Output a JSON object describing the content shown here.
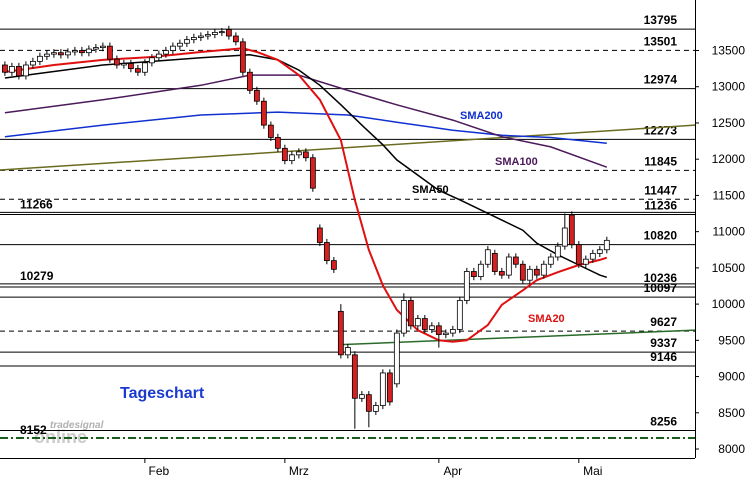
{
  "chart_data": {
    "type": "candlestick",
    "title": "Tageschart",
    "watermark": [
      "tradesignal",
      "online"
    ],
    "xlim": [
      -0.7,
      98.6
    ],
    "xticks": [
      {
        "value": 22,
        "label": "Feb"
      },
      {
        "value": 42,
        "label": "Mrz"
      },
      {
        "value": 64,
        "label": "Apr"
      },
      {
        "value": 84,
        "label": "Mai"
      }
    ],
    "ylim": [
      7876,
      14197
    ],
    "yticks": [
      8000,
      8500,
      9000,
      9500,
      10000,
      10500,
      11000,
      11500,
      12000,
      12500,
      13000,
      13500
    ],
    "up_color": "#ffffff",
    "down_color": "#d42020",
    "open": [
      13300,
      13200,
      13280,
      13150,
      13300,
      13350,
      13420,
      13450,
      13470,
      13440,
      13480,
      13500,
      13470,
      13520,
      13540,
      13560,
      13380,
      13300,
      13320,
      13250,
      13200,
      13330,
      13400,
      13450,
      13500,
      13560,
      13600,
      13650,
      13680,
      13700,
      13720,
      13750,
      13790,
      13700,
      13620,
      13200,
      12950,
      12800,
      12470,
      12300,
      12150,
      11980,
      12060,
      12100,
      12020,
      11050,
      10850,
      10600,
      9900,
      9300,
      9300,
      8700,
      8750,
      8520,
      8600,
      9050,
      8900,
      9600,
      10050,
      9700,
      9800,
      9650,
      9700,
      9580,
      9600,
      9650,
      10050,
      10450,
      10380,
      10550,
      10700,
      10450,
      10400,
      10650,
      10550,
      10330,
      10480,
      10400,
      10550,
      10650,
      10800,
      11230,
      10820,
      10550,
      10620,
      10700,
      10750
    ],
    "high": [
      13350,
      13330,
      13330,
      13350,
      13400,
      13470,
      13500,
      13520,
      13520,
      13530,
      13550,
      13550,
      13570,
      13590,
      13610,
      13610,
      13430,
      13370,
      13370,
      13300,
      13380,
      13450,
      13500,
      13550,
      13610,
      13650,
      13700,
      13730,
      13750,
      13770,
      13800,
      13810,
      13840,
      13750,
      13670,
      13250,
      13000,
      12850,
      12520,
      12350,
      12200,
      12110,
      12150,
      12150,
      12070,
      11100,
      10900,
      10650,
      10000,
      9450,
      9350,
      8800,
      8800,
      8650,
      9100,
      9100,
      9650,
      10150,
      10100,
      9850,
      9850,
      9750,
      9750,
      9650,
      9700,
      10100,
      10500,
      10500,
      10600,
      10800,
      10750,
      10500,
      10700,
      10700,
      10600,
      10530,
      10530,
      10600,
      10700,
      10850,
      11250,
      11280,
      10870,
      10670,
      10750,
      10800,
      10930
    ],
    "low": [
      13150,
      13150,
      13100,
      13100,
      13250,
      13300,
      13370,
      13400,
      13390,
      13390,
      13430,
      13420,
      13420,
      13470,
      13490,
      13330,
      13250,
      13250,
      13200,
      13150,
      13150,
      13280,
      13350,
      13400,
      13450,
      13510,
      13550,
      13600,
      13630,
      13650,
      13670,
      13700,
      13650,
      13570,
      13150,
      12900,
      12750,
      12420,
      12250,
      12100,
      11930,
      11930,
      12010,
      11970,
      11550,
      10800,
      10550,
      10430,
      9250,
      9250,
      8280,
      8650,
      8300,
      8470,
      8550,
      8600,
      8850,
      9550,
      9650,
      9650,
      9600,
      9600,
      9400,
      9530,
      9550,
      9600,
      10000,
      10330,
      10330,
      10500,
      10400,
      10350,
      10350,
      10500,
      10280,
      10280,
      10350,
      10350,
      10500,
      10600,
      10750,
      10770,
      10500,
      10500,
      10570,
      10650,
      10700
    ],
    "close": [
      13200,
      13280,
      13150,
      13300,
      13350,
      13420,
      13450,
      13470,
      13440,
      13480,
      13500,
      13470,
      13520,
      13540,
      13560,
      13380,
      13300,
      13320,
      13250,
      13200,
      13330,
      13400,
      13450,
      13500,
      13560,
      13600,
      13650,
      13680,
      13700,
      13720,
      13750,
      13760,
      13700,
      13620,
      13200,
      12950,
      12800,
      12470,
      12300,
      12150,
      11980,
      12060,
      12100,
      12020,
      11600,
      10850,
      10600,
      10480,
      9300,
      9400,
      8700,
      8750,
      8520,
      8600,
      9050,
      8650,
      9600,
      10050,
      9700,
      9800,
      9650,
      9700,
      9580,
      9600,
      9650,
      10050,
      10450,
      10380,
      10550,
      10750,
      10450,
      10400,
      10650,
      10550,
      10330,
      10480,
      10400,
      10550,
      10650,
      10800,
      11050,
      10820,
      10550,
      10620,
      10700,
      10750,
      10880
    ],
    "series": [
      {
        "name": "SMA200",
        "color": "#1030d0",
        "x": [
          0,
          14,
          28,
          39,
          49,
          56,
          64,
          71,
          78,
          86
        ],
        "values": [
          12310,
          12470,
          12610,
          12650,
          12610,
          12510,
          12400,
          12330,
          12300,
          12220
        ]
      },
      {
        "name": "SMA100",
        "color": "#4b1a5a",
        "x": [
          0,
          14,
          28,
          35,
          42,
          49,
          56,
          64,
          71,
          78,
          86
        ],
        "values": [
          12640,
          12820,
          13020,
          13160,
          13160,
          12950,
          12750,
          12540,
          12310,
          12170,
          11890
        ]
      },
      {
        "name": "SMA50",
        "color": "#000000",
        "x": [
          0,
          14,
          28,
          35,
          39,
          42,
          45,
          48,
          51,
          54,
          56,
          59,
          62,
          65,
          68,
          71,
          74,
          76,
          79,
          82,
          85,
          86
        ],
        "values": [
          13120,
          13300,
          13400,
          13440,
          13370,
          13230,
          13020,
          12750,
          12470,
          12200,
          11990,
          11780,
          11570,
          11440,
          11300,
          11160,
          11020,
          10840,
          10680,
          10540,
          10400,
          10370
        ]
      },
      {
        "name": "SMA20",
        "color": "#e01010",
        "x": [
          0,
          7,
          14,
          21,
          28,
          34,
          36,
          39,
          42,
          45,
          48,
          50,
          52,
          54,
          56,
          59,
          62,
          64,
          66,
          69,
          71,
          74,
          76,
          79,
          82,
          85,
          86
        ],
        "values": [
          13203,
          13300,
          13370,
          13410,
          13480,
          13530,
          13480,
          13370,
          13160,
          12820,
          12260,
          11440,
          10750,
          10260,
          9920,
          9640,
          9500,
          9480,
          9500,
          9710,
          9990,
          10190,
          10330,
          10440,
          10540,
          10610,
          10640
        ]
      }
    ],
    "trend_lines": [
      {
        "color": "#6b6b20",
        "x": [
          -0.7,
          98.6
        ],
        "values": [
          11850,
          12470
        ]
      },
      {
        "color": "#2a6a2a",
        "x": [
          48,
          98.6
        ],
        "values": [
          9440,
          9640
        ]
      }
    ],
    "levels": [
      {
        "value": 13795,
        "style": "solid",
        "side": "right"
      },
      {
        "value": 13501,
        "style": "dashed",
        "side": "right"
      },
      {
        "value": 12974,
        "style": "solid",
        "side": "right"
      },
      {
        "value": 12273,
        "style": "solid",
        "side": "right"
      },
      {
        "value": 11845,
        "style": "dashed",
        "side": "right"
      },
      {
        "value": 11447,
        "style": "dashed",
        "side": "right"
      },
      {
        "value": 11266,
        "style": "solid",
        "side": "left"
      },
      {
        "value": 11236,
        "style": "solid",
        "side": "right"
      },
      {
        "value": 10820,
        "style": "solid",
        "side": "right"
      },
      {
        "value": 10279,
        "style": "solid",
        "side": "left"
      },
      {
        "value": 10236,
        "style": "solid",
        "side": "right"
      },
      {
        "value": 10097,
        "style": "solid",
        "side": "right"
      },
      {
        "value": 9627,
        "style": "dashed",
        "side": "right"
      },
      {
        "value": 9337,
        "style": "solid",
        "side": "right"
      },
      {
        "value": 9146,
        "style": "solid",
        "side": "right"
      },
      {
        "value": 8256,
        "style": "solid",
        "side": "right"
      },
      {
        "value": 8152,
        "style": "dashdot",
        "side": "left",
        "color": "#1a5c1a"
      }
    ]
  }
}
